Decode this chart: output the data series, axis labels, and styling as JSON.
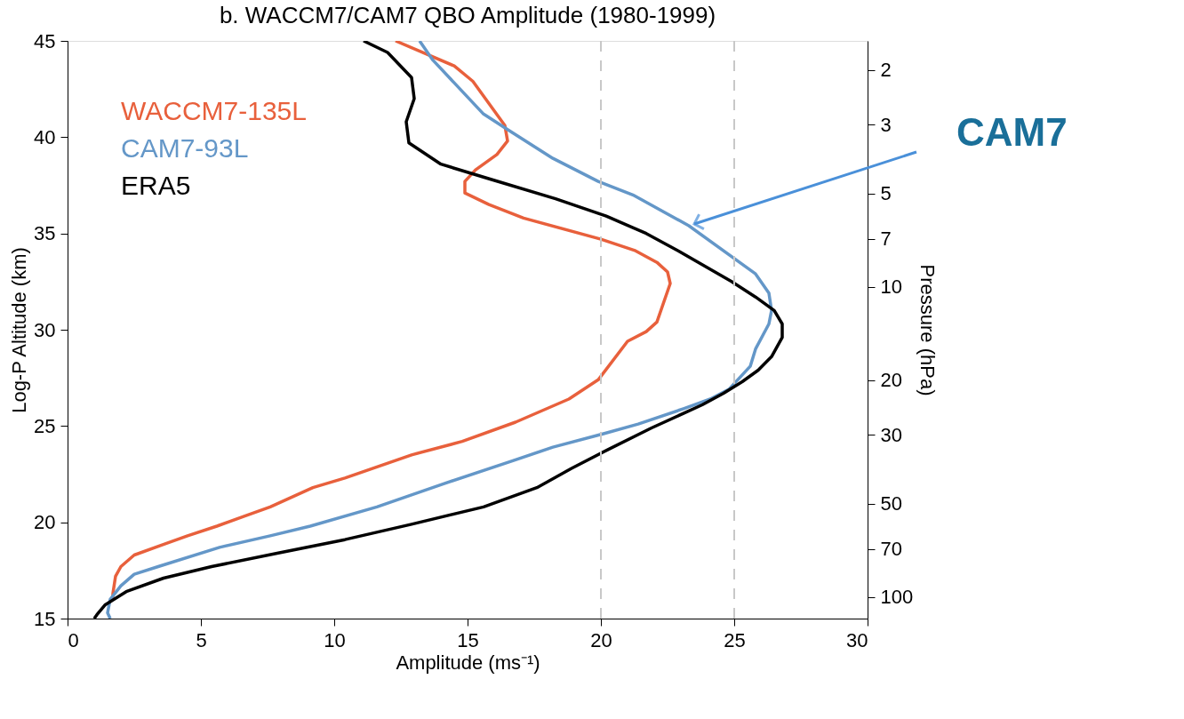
{
  "chart_data": {
    "type": "line",
    "title": "b. WACCM7/CAM7 QBO Amplitude  (1980-1999)",
    "xlabel": "Amplitude (ms⁻¹)",
    "ylabel": "Log-P Altitude (km)",
    "y2label": "Pressure (hPa)",
    "xlim": [
      0,
      30
    ],
    "xticks": [
      0,
      5,
      10,
      15,
      20,
      25,
      30
    ],
    "ylim": [
      15,
      45
    ],
    "yticks": [
      15,
      20,
      25,
      30,
      35,
      40,
      45
    ],
    "y2lim": [
      117.3,
      1.61
    ],
    "y2ticks": [
      2,
      3,
      5,
      7,
      10,
      20,
      30,
      50,
      70,
      100
    ],
    "log": "y2",
    "grid": false,
    "legend": "top left",
    "line_style": "solid",
    "marker": "none",
    "ref_lines": [
      {
        "axis": "x",
        "value": 20,
        "color": "#c8c8c8",
        "line_style": "dashed"
      },
      {
        "axis": "x",
        "value": 25,
        "color": "#c8c8c8",
        "line_style": "dashed"
      }
    ],
    "annotations": [
      {
        "text": "CAM7",
        "x": 23.3,
        "y": 35.4
      }
    ],
    "series": [
      {
        "name": "WACCM7-135L",
        "color": "#e8603c",
        "x": [
          12.3,
          14.5,
          15.2,
          16.4,
          16.5,
          16.1,
          15.3,
          14.9,
          14.9,
          15.8,
          17.1,
          20.0,
          21.3,
          22.1,
          22.5,
          22.6,
          22.1,
          21.7,
          21.0,
          19.9,
          18.8,
          16.8,
          14.8,
          12.9,
          10.4,
          9.2,
          7.6,
          6.6,
          5.6,
          4.5,
          3.5,
          2.5,
          2.0,
          1.8,
          1.7,
          1.7
        ],
        "values": [
          45.0,
          43.7,
          42.9,
          40.6,
          39.8,
          39.1,
          38.3,
          37.7,
          37.1,
          36.5,
          35.8,
          34.7,
          34.1,
          33.5,
          33.0,
          32.4,
          30.4,
          29.9,
          29.4,
          27.4,
          26.4,
          25.2,
          24.2,
          23.5,
          22.3,
          21.8,
          20.8,
          20.3,
          19.8,
          19.3,
          18.8,
          18.3,
          17.7,
          17.2,
          16.3,
          16.0
        ]
      },
      {
        "name": "CAM7-93L",
        "color": "#6497c8",
        "x": [
          13.2,
          13.7,
          15.6,
          16.5,
          18.2,
          19.9,
          21.2,
          23.3,
          25.8,
          26.3,
          26.4,
          26.3,
          25.8,
          25.6,
          24.8,
          24.1,
          23.1,
          21.4,
          20.1,
          18.2,
          16.7,
          14.1,
          11.6,
          9.1,
          7.6,
          5.7,
          3.4,
          2.5,
          2.0,
          1.6,
          1.5,
          1.6
        ],
        "values": [
          45.0,
          44.0,
          41.2,
          40.4,
          38.9,
          37.7,
          37.0,
          35.4,
          32.9,
          31.9,
          31.0,
          30.3,
          29.0,
          28.1,
          26.9,
          26.4,
          25.9,
          25.1,
          24.6,
          23.9,
          23.2,
          22.0,
          20.8,
          19.8,
          19.3,
          18.7,
          17.7,
          17.3,
          16.7,
          16.0,
          15.3,
          15.0
        ]
      },
      {
        "name": "ERA5",
        "color": "#000000",
        "x": [
          11.1,
          12.0,
          12.9,
          13.0,
          12.7,
          12.8,
          14.0,
          15.9,
          18.3,
          20.2,
          21.7,
          22.9,
          24.9,
          25.8,
          26.5,
          26.8,
          26.8,
          26.4,
          25.9,
          25.3,
          24.6,
          23.8,
          21.9,
          20.3,
          18.9,
          17.6,
          15.6,
          12.9,
          10.4,
          7.9,
          5.4,
          3.6,
          2.2,
          1.4,
          1.1,
          1.0
        ],
        "values": [
          45.0,
          44.4,
          43.1,
          42.0,
          40.8,
          39.7,
          38.6,
          37.8,
          36.8,
          35.9,
          35.0,
          34.1,
          32.5,
          31.7,
          31.0,
          30.3,
          29.6,
          28.6,
          27.9,
          27.3,
          26.7,
          26.1,
          24.9,
          23.8,
          22.8,
          21.8,
          20.8,
          19.9,
          19.1,
          18.4,
          17.7,
          17.1,
          16.4,
          15.7,
          15.2,
          15.0
        ]
      }
    ]
  }
}
